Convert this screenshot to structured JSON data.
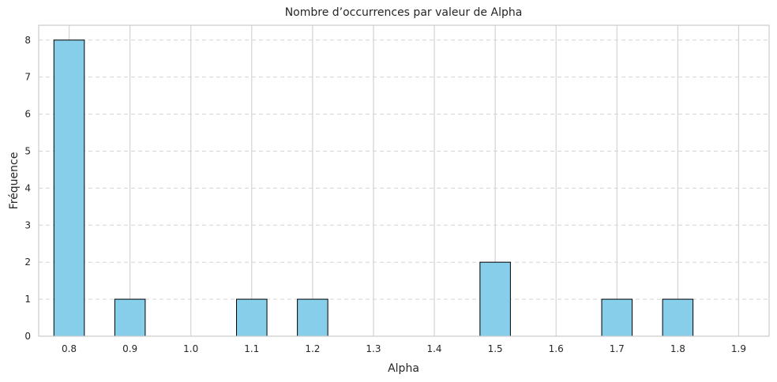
{
  "chart_data": {
    "type": "bar",
    "title": "Nombre d’occurrences par valeur de Alpha",
    "xlabel": "Alpha",
    "ylabel": "Fréquence",
    "x_ticks": [
      "0.8",
      "0.9",
      "1.0",
      "1.1",
      "1.2",
      "1.3",
      "1.4",
      "1.5",
      "1.6",
      "1.7",
      "1.8",
      "1.9"
    ],
    "y_ticks": [
      "0",
      "1",
      "2",
      "3",
      "4",
      "5",
      "6",
      "7",
      "8"
    ],
    "categories": [
      0.8,
      0.9,
      1.1,
      1.2,
      1.5,
      1.7,
      1.8
    ],
    "values": [
      8,
      1,
      1,
      1,
      2,
      1,
      1
    ],
    "xlim": [
      0.75,
      1.95
    ],
    "ylim": [
      0,
      8.4
    ],
    "bar_width": 0.05,
    "grid": {
      "vertical": "solid",
      "horizontal": "dashed"
    },
    "colors": {
      "bar_fill": "#87ceeb",
      "bar_edge": "#000000",
      "grid": "#d3d3d3",
      "frame": "#cccccc",
      "text": "#262626"
    }
  }
}
